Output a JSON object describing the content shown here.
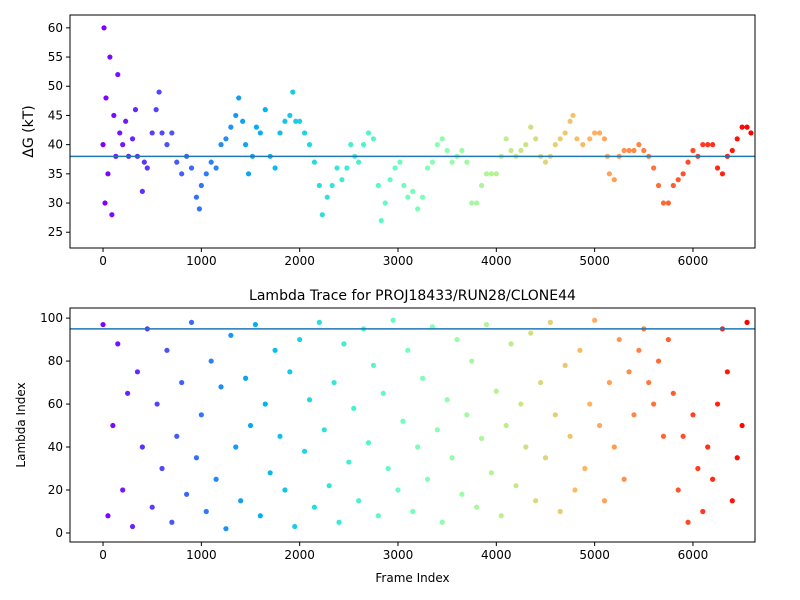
{
  "chart_data": [
    {
      "type": "scatter",
      "ylabel": "ΔG (kT)",
      "colormap": "rainbow",
      "xlim": [
        -336,
        6631
      ],
      "ylim": [
        22.3,
        62.2
      ],
      "xticks": [
        0,
        1000,
        2000,
        3000,
        4000,
        5000,
        6000
      ],
      "yticks": [
        25,
        30,
        35,
        40,
        45,
        50,
        55,
        60
      ],
      "hline": 38,
      "hline_color": "#1f77b4",
      "x": [
        0,
        10,
        20,
        30,
        50,
        70,
        90,
        110,
        130,
        150,
        170,
        200,
        230,
        260,
        300,
        330,
        350,
        400,
        420,
        450,
        500,
        540,
        570,
        600,
        650,
        700,
        750,
        800,
        850,
        900,
        950,
        980,
        1000,
        1050,
        1100,
        1150,
        1200,
        1250,
        1300,
        1350,
        1380,
        1420,
        1450,
        1480,
        1520,
        1560,
        1600,
        1650,
        1700,
        1750,
        1800,
        1850,
        1900,
        1930,
        1960,
        2000,
        2050,
        2100,
        2150,
        2200,
        2230,
        2280,
        2330,
        2380,
        2430,
        2480,
        2520,
        2560,
        2600,
        2650,
        2700,
        2750,
        2800,
        2830,
        2870,
        2920,
        2970,
        3020,
        3060,
        3100,
        3150,
        3200,
        3250,
        3300,
        3350,
        3400,
        3450,
        3500,
        3550,
        3600,
        3650,
        3700,
        3750,
        3800,
        3850,
        3900,
        3950,
        4000,
        4050,
        4100,
        4150,
        4200,
        4250,
        4300,
        4350,
        4400,
        4450,
        4500,
        4550,
        4600,
        4650,
        4700,
        4750,
        4780,
        4820,
        4880,
        4950,
        5000,
        5050,
        5100,
        5130,
        5150,
        5200,
        5250,
        5300,
        5350,
        5400,
        5450,
        5500,
        5550,
        5600,
        5650,
        5700,
        5750,
        5800,
        5850,
        5900,
        5950,
        6000,
        6050,
        6100,
        6150,
        6200,
        6250,
        6300,
        6350,
        6400,
        6450,
        6500,
        6550,
        6590
      ],
      "values": [
        40,
        60,
        30,
        48,
        35,
        55,
        28,
        45,
        38,
        52,
        42,
        40,
        44,
        38,
        41,
        46,
        38,
        32,
        37,
        36,
        42,
        46,
        49,
        42,
        40,
        42,
        37,
        35,
        38,
        36,
        31,
        29,
        33,
        35,
        37,
        36,
        40,
        41,
        43,
        45,
        48,
        44,
        40,
        35,
        38,
        43,
        42,
        46,
        38,
        36,
        42,
        44,
        45,
        49,
        44,
        44,
        42,
        40,
        37,
        33,
        28,
        31,
        33,
        36,
        34,
        36,
        40,
        38,
        37,
        40,
        42,
        41,
        33,
        27,
        30,
        34,
        36,
        37,
        33,
        31,
        32,
        29,
        31,
        36,
        37,
        40,
        41,
        39,
        37,
        38,
        39,
        37,
        30,
        30,
        33,
        35,
        35,
        35,
        38,
        41,
        39,
        38,
        39,
        40,
        43,
        41,
        38,
        37,
        38,
        40,
        41,
        42,
        44,
        45,
        41,
        40,
        41,
        42,
        42,
        41,
        38,
        35,
        34,
        38,
        39,
        39,
        39,
        40,
        39,
        38,
        36,
        33,
        30,
        30,
        33,
        34,
        35,
        37,
        39,
        38,
        40,
        40,
        40,
        36,
        35,
        38,
        39,
        41,
        43,
        43,
        42
      ]
    },
    {
      "type": "scatter",
      "title": "Lambda Trace for PROJ18433/RUN28/CLONE44",
      "xlabel": "Frame Index",
      "ylabel": "Lambda Index",
      "colormap": "rainbow",
      "xlim": [
        -336,
        6631
      ],
      "ylim": [
        -4.2,
        104.7
      ],
      "xticks": [
        0,
        1000,
        2000,
        3000,
        4000,
        5000,
        6000
      ],
      "yticks": [
        0,
        20,
        40,
        60,
        80,
        100
      ],
      "hline": 95,
      "hline_color": "#1f77b4",
      "x": [
        0,
        50,
        100,
        150,
        200,
        250,
        300,
        350,
        400,
        450,
        500,
        550,
        600,
        650,
        700,
        750,
        800,
        850,
        900,
        950,
        1000,
        1050,
        1100,
        1150,
        1200,
        1250,
        1300,
        1350,
        1400,
        1450,
        1500,
        1550,
        1600,
        1650,
        1700,
        1750,
        1800,
        1850,
        1900,
        1950,
        2000,
        2050,
        2100,
        2150,
        2200,
        2250,
        2300,
        2350,
        2400,
        2450,
        2500,
        2550,
        2600,
        2650,
        2700,
        2750,
        2800,
        2850,
        2900,
        2950,
        3000,
        3050,
        3100,
        3150,
        3200,
        3250,
        3300,
        3350,
        3400,
        3450,
        3500,
        3550,
        3600,
        3650,
        3700,
        3750,
        3800,
        3850,
        3900,
        3950,
        4000,
        4050,
        4100,
        4150,
        4200,
        4250,
        4300,
        4350,
        4400,
        4450,
        4500,
        4550,
        4600,
        4650,
        4700,
        4750,
        4800,
        4850,
        4900,
        4950,
        5000,
        5050,
        5100,
        5150,
        5200,
        5250,
        5300,
        5350,
        5400,
        5450,
        5500,
        5550,
        5600,
        5650,
        5700,
        5750,
        5800,
        5850,
        5900,
        5950,
        6000,
        6050,
        6100,
        6150,
        6200,
        6250,
        6300,
        6350,
        6400,
        6450,
        6500,
        6550
      ],
      "values": [
        97,
        8,
        50,
        88,
        20,
        65,
        3,
        75,
        40,
        95,
        12,
        60,
        30,
        85,
        5,
        45,
        70,
        18,
        98,
        35,
        55,
        10,
        80,
        25,
        68,
        2,
        92,
        40,
        15,
        72,
        50,
        97,
        8,
        60,
        28,
        85,
        45,
        20,
        75,
        3,
        90,
        38,
        62,
        12,
        98,
        48,
        22,
        70,
        5,
        88,
        33,
        58,
        15,
        95,
        42,
        78,
        8,
        65,
        30,
        99,
        20,
        52,
        85,
        10,
        40,
        72,
        25,
        96,
        48,
        5,
        62,
        35,
        90,
        18,
        55,
        80,
        12,
        44,
        97,
        28,
        66,
        8,
        50,
        88,
        22,
        60,
        40,
        93,
        15,
        70,
        35,
        98,
        55,
        10,
        78,
        45,
        20,
        85,
        30,
        60,
        99,
        50,
        15,
        70,
        40,
        90,
        25,
        75,
        55,
        85,
        95,
        70,
        60,
        80,
        45,
        90,
        65,
        20,
        45,
        5,
        55,
        30,
        10,
        40,
        25,
        60,
        95,
        75,
        15,
        35,
        50,
        98
      ]
    }
  ]
}
